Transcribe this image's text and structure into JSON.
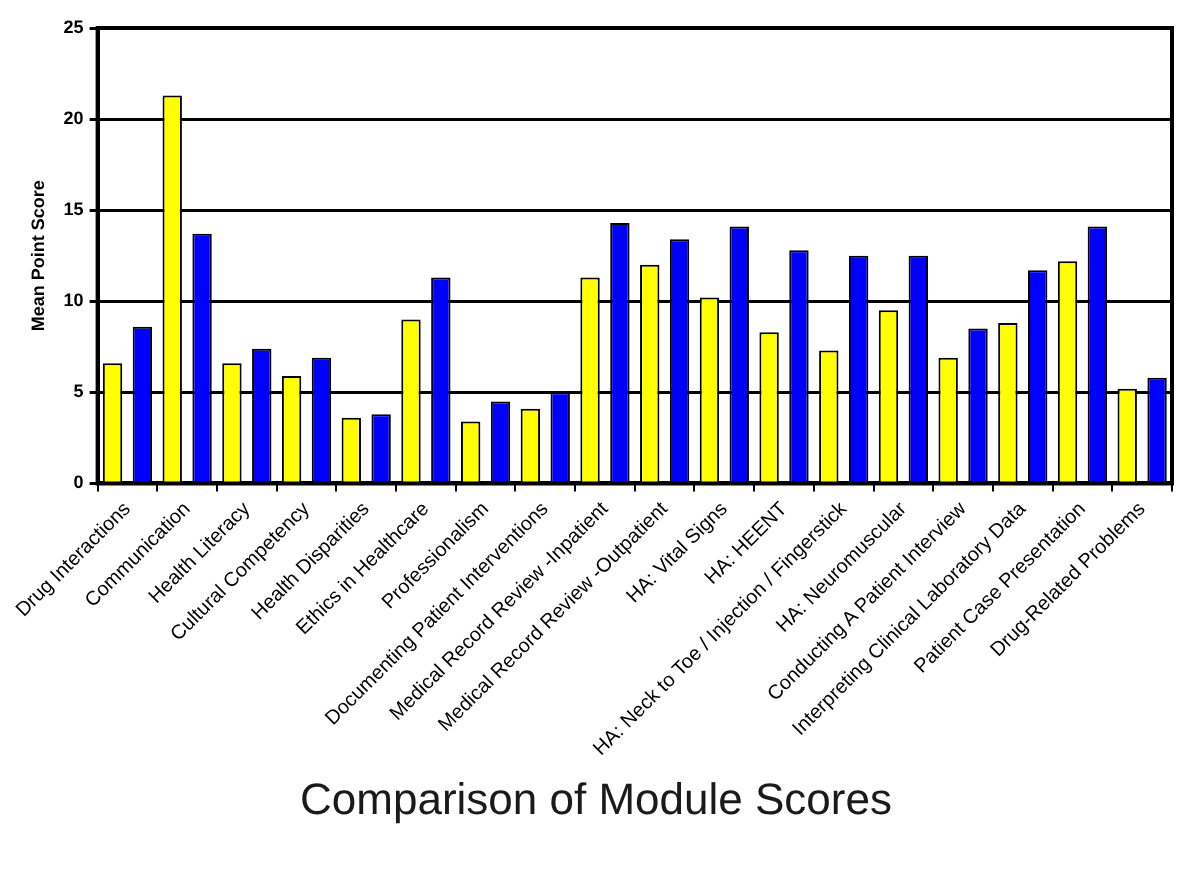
{
  "chart_data": {
    "type": "bar",
    "title": "Comparison of Module Scores",
    "ylabel": "Mean Point Score",
    "categories": [
      "Drug Interactions",
      "Communication",
      "Health Literacy",
      "Cultural Competency",
      "Health Disparities",
      "Ethics in Healthcare",
      "Professionalism",
      "Documenting Patient Interventions",
      "Medical Record Review -Inpatient",
      "Medical Record Review -Outpatient",
      "HA: Vital Signs",
      "HA: HEENT",
      "HA: Neck to Toe / Injection / Fingerstick",
      "HA: Neuromuscular",
      "Conducting A Patient Interview",
      "Interpreting Clinical Laboratory Data",
      "Patient Case Presentation",
      "Drug-Related Problems"
    ],
    "series": [
      {
        "color": "#ffff00",
        "values": [
          6.6,
          21.3,
          6.6,
          5.9,
          3.6,
          9.0,
          3.4,
          4.1,
          11.3,
          12.0,
          10.2,
          8.3,
          7.3,
          9.5,
          6.9,
          8.8,
          12.2,
          5.2
        ]
      },
      {
        "color": "#0000ff",
        "values": [
          8.6,
          13.7,
          7.4,
          6.9,
          3.8,
          11.3,
          4.5,
          5.0,
          14.3,
          13.4,
          14.1,
          12.8,
          12.5,
          12.5,
          8.5,
          11.7,
          14.1,
          5.8
        ]
      }
    ],
    "ylim": [
      0,
      25
    ],
    "yticks": [
      0,
      5,
      10,
      15,
      20,
      25
    ],
    "grid": "y",
    "legend": false
  }
}
